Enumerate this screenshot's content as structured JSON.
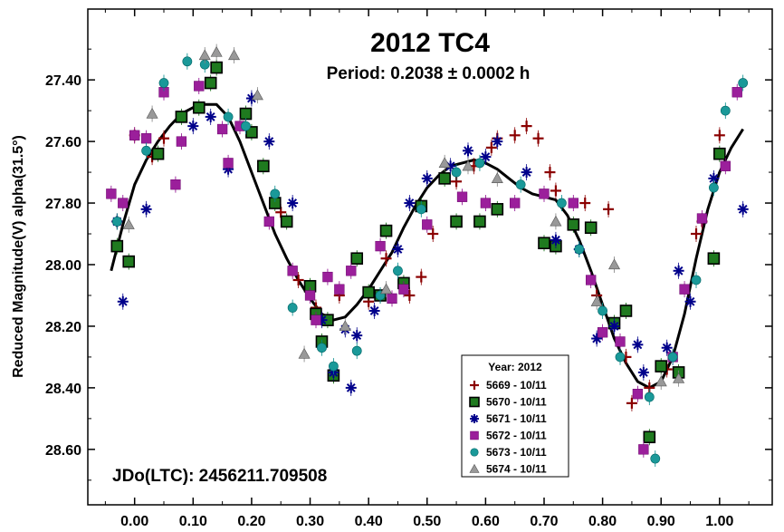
{
  "chart_data": {
    "type": "scatter",
    "title": "2012 TC4",
    "subtitle": "Period: 0.2038 ± 0.0002 h",
    "annotation": "JDo(LTC): 2456211.709508",
    "ylabel": "Reduced Magnitude(V) alpha(31.5°)",
    "xlabel": "",
    "xlim": [
      -0.08,
      1.09
    ],
    "ylim": [
      28.78,
      27.17
    ],
    "y_inverted": true,
    "grid": false,
    "x_ticks": [
      0.0,
      0.1,
      0.2,
      0.3,
      0.4,
      0.5,
      0.6,
      0.7,
      0.8,
      0.9,
      1.0
    ],
    "x_tick_labels": [
      "0.00",
      "0.10",
      "0.20",
      "0.30",
      "0.40",
      "0.50",
      "0.60",
      "0.70",
      "0.80",
      "0.90",
      "1.00"
    ],
    "y_ticks": [
      27.4,
      27.6,
      27.8,
      28.0,
      28.2,
      28.4,
      28.6
    ],
    "y_tick_labels": [
      "27.40",
      "27.60",
      "27.80",
      "28.00",
      "28.20",
      "28.40",
      "28.60"
    ],
    "legend": {
      "title": "Year: 2012",
      "placement": "bottom-center"
    },
    "series": [
      {
        "name": "5669 - 10/11",
        "marker": "plus",
        "color": "#8b0000",
        "points": [
          [
            -0.03,
            27.86
          ],
          [
            0.0,
            27.58
          ],
          [
            0.03,
            27.65
          ],
          [
            0.05,
            27.59
          ],
          [
            0.25,
            27.83
          ],
          [
            0.28,
            28.05
          ],
          [
            0.31,
            28.14
          ],
          [
            0.35,
            28.1
          ],
          [
            0.4,
            28.12
          ],
          [
            0.43,
            27.98
          ],
          [
            0.47,
            28.1
          ],
          [
            0.49,
            28.04
          ],
          [
            0.51,
            27.9
          ],
          [
            0.55,
            27.73
          ],
          [
            0.58,
            27.68
          ],
          [
            0.61,
            27.62
          ],
          [
            0.62,
            27.59
          ],
          [
            0.65,
            27.58
          ],
          [
            0.67,
            27.55
          ],
          [
            0.69,
            27.59
          ],
          [
            0.71,
            27.7
          ],
          [
            0.72,
            27.76
          ],
          [
            0.77,
            27.8
          ],
          [
            0.79,
            28.1
          ],
          [
            0.81,
            27.82
          ],
          [
            0.84,
            28.3
          ],
          [
            0.85,
            28.45
          ],
          [
            0.88,
            28.4
          ],
          [
            0.91,
            28.34
          ],
          [
            0.96,
            27.9
          ],
          [
            0.97,
            27.86
          ],
          [
            1.0,
            27.58
          ]
        ]
      },
      {
        "name": "5670 - 10/11",
        "marker": "square",
        "color": "#006400",
        "points": [
          [
            -0.03,
            27.94
          ],
          [
            -0.01,
            27.99
          ],
          [
            0.04,
            27.64
          ],
          [
            0.08,
            27.52
          ],
          [
            0.11,
            27.49
          ],
          [
            0.13,
            27.41
          ],
          [
            0.14,
            27.36
          ],
          [
            0.19,
            27.51
          ],
          [
            0.2,
            27.57
          ],
          [
            0.22,
            27.68
          ],
          [
            0.24,
            27.8
          ],
          [
            0.26,
            27.86
          ],
          [
            0.3,
            28.07
          ],
          [
            0.31,
            28.16
          ],
          [
            0.32,
            28.25
          ],
          [
            0.33,
            28.18
          ],
          [
            0.34,
            28.36
          ],
          [
            0.38,
            27.98
          ],
          [
            0.4,
            28.09
          ],
          [
            0.42,
            28.1
          ],
          [
            0.43,
            27.89
          ],
          [
            0.46,
            28.06
          ],
          [
            0.49,
            27.81
          ],
          [
            0.53,
            27.72
          ],
          [
            0.55,
            27.86
          ],
          [
            0.59,
            27.86
          ],
          [
            0.62,
            27.82
          ],
          [
            0.7,
            27.93
          ],
          [
            0.72,
            27.94
          ],
          [
            0.75,
            27.87
          ],
          [
            0.78,
            27.88
          ],
          [
            0.82,
            28.19
          ],
          [
            0.84,
            28.15
          ],
          [
            0.88,
            28.56
          ],
          [
            0.9,
            28.33
          ],
          [
            0.93,
            28.35
          ],
          [
            0.99,
            27.98
          ],
          [
            1.0,
            27.64
          ]
        ]
      },
      {
        "name": "5671 - 10/11",
        "marker": "asterisk",
        "color": "#00008b",
        "points": [
          [
            -0.03,
            27.86
          ],
          [
            -0.02,
            28.12
          ],
          [
            0.02,
            27.82
          ],
          [
            0.1,
            27.55
          ],
          [
            0.13,
            27.52
          ],
          [
            0.16,
            27.69
          ],
          [
            0.2,
            27.46
          ],
          [
            0.23,
            27.6
          ],
          [
            0.27,
            27.8
          ],
          [
            0.32,
            28.18
          ],
          [
            0.34,
            28.35
          ],
          [
            0.36,
            28.21
          ],
          [
            0.37,
            28.4
          ],
          [
            0.38,
            28.23
          ],
          [
            0.41,
            28.15
          ],
          [
            0.45,
            27.95
          ],
          [
            0.47,
            27.8
          ],
          [
            0.5,
            27.72
          ],
          [
            0.54,
            27.68
          ],
          [
            0.57,
            27.63
          ],
          [
            0.6,
            27.65
          ],
          [
            0.62,
            27.6
          ],
          [
            0.67,
            27.7
          ],
          [
            0.72,
            27.92
          ],
          [
            0.76,
            27.95
          ],
          [
            0.79,
            28.24
          ],
          [
            0.82,
            28.2
          ],
          [
            0.86,
            28.26
          ],
          [
            0.87,
            28.35
          ],
          [
            0.91,
            28.27
          ],
          [
            0.93,
            28.02
          ],
          [
            0.95,
            28.12
          ],
          [
            0.99,
            27.72
          ],
          [
            1.04,
            27.82
          ]
        ]
      },
      {
        "name": "5672 - 10/11",
        "marker": "square-filled",
        "color": "#8b008b",
        "points": [
          [
            -0.04,
            27.77
          ],
          [
            -0.02,
            27.8
          ],
          [
            0.0,
            27.58
          ],
          [
            0.02,
            27.59
          ],
          [
            0.05,
            27.44
          ],
          [
            0.07,
            27.74
          ],
          [
            0.08,
            27.6
          ],
          [
            0.11,
            27.42
          ],
          [
            0.15,
            27.56
          ],
          [
            0.16,
            27.67
          ],
          [
            0.18,
            27.55
          ],
          [
            0.23,
            27.86
          ],
          [
            0.27,
            28.02
          ],
          [
            0.3,
            28.1
          ],
          [
            0.31,
            28.18
          ],
          [
            0.33,
            28.04
          ],
          [
            0.35,
            28.08
          ],
          [
            0.37,
            28.02
          ],
          [
            0.42,
            27.94
          ],
          [
            0.44,
            28.11
          ],
          [
            0.46,
            28.08
          ],
          [
            0.5,
            27.87
          ],
          [
            0.56,
            27.78
          ],
          [
            0.6,
            27.8
          ],
          [
            0.65,
            27.8
          ],
          [
            0.7,
            27.77
          ],
          [
            0.75,
            27.8
          ],
          [
            0.78,
            28.05
          ],
          [
            0.8,
            28.22
          ],
          [
            0.83,
            28.25
          ],
          [
            0.86,
            28.42
          ],
          [
            0.87,
            28.6
          ],
          [
            0.92,
            28.3
          ],
          [
            0.94,
            28.08
          ],
          [
            0.97,
            27.85
          ],
          [
            1.01,
            27.68
          ],
          [
            1.03,
            27.44
          ]
        ]
      },
      {
        "name": "5673 - 10/11",
        "marker": "circle",
        "color": "#008b8b",
        "points": [
          [
            -0.03,
            27.86
          ],
          [
            0.02,
            27.63
          ],
          [
            0.05,
            27.41
          ],
          [
            0.09,
            27.34
          ],
          [
            0.12,
            27.35
          ],
          [
            0.16,
            27.52
          ],
          [
            0.19,
            27.55
          ],
          [
            0.24,
            27.77
          ],
          [
            0.27,
            28.14
          ],
          [
            0.32,
            28.27
          ],
          [
            0.34,
            28.33
          ],
          [
            0.38,
            28.28
          ],
          [
            0.42,
            28.1
          ],
          [
            0.45,
            28.02
          ],
          [
            0.49,
            27.82
          ],
          [
            0.55,
            27.7
          ],
          [
            0.59,
            27.67
          ],
          [
            0.66,
            27.74
          ],
          [
            0.73,
            27.8
          ],
          [
            0.76,
            27.95
          ],
          [
            0.8,
            28.15
          ],
          [
            0.83,
            28.3
          ],
          [
            0.88,
            28.43
          ],
          [
            0.89,
            28.63
          ],
          [
            0.92,
            28.3
          ],
          [
            0.96,
            28.05
          ],
          [
            0.99,
            27.75
          ],
          [
            1.01,
            27.5
          ],
          [
            1.04,
            27.41
          ]
        ]
      },
      {
        "name": "5674 - 10/11",
        "marker": "triangle",
        "color": "#808080",
        "points": [
          [
            -0.01,
            27.87
          ],
          [
            0.03,
            27.51
          ],
          [
            0.12,
            27.32
          ],
          [
            0.14,
            27.31
          ],
          [
            0.17,
            27.32
          ],
          [
            0.21,
            27.45
          ],
          [
            0.29,
            28.29
          ],
          [
            0.36,
            28.2
          ],
          [
            0.43,
            28.08
          ],
          [
            0.53,
            27.67
          ],
          [
            0.57,
            27.68
          ],
          [
            0.62,
            27.72
          ],
          [
            0.72,
            27.86
          ],
          [
            0.79,
            28.12
          ],
          [
            0.82,
            28.0
          ],
          [
            0.9,
            28.38
          ],
          [
            0.93,
            28.37
          ]
        ]
      }
    ],
    "fit_curve": {
      "color": "#000000",
      "points": [
        [
          -0.04,
          28.02
        ],
        [
          -0.02,
          27.87
        ],
        [
          0.0,
          27.74
        ],
        [
          0.02,
          27.66
        ],
        [
          0.04,
          27.6
        ],
        [
          0.06,
          27.55
        ],
        [
          0.08,
          27.51
        ],
        [
          0.1,
          27.49
        ],
        [
          0.12,
          27.48
        ],
        [
          0.14,
          27.48
        ],
        [
          0.16,
          27.52
        ],
        [
          0.18,
          27.6
        ],
        [
          0.2,
          27.7
        ],
        [
          0.22,
          27.8
        ],
        [
          0.24,
          27.9
        ],
        [
          0.26,
          27.98
        ],
        [
          0.28,
          28.05
        ],
        [
          0.3,
          28.11
        ],
        [
          0.32,
          28.16
        ],
        [
          0.34,
          28.18
        ],
        [
          0.36,
          28.17
        ],
        [
          0.38,
          28.13
        ],
        [
          0.4,
          28.08
        ],
        [
          0.42,
          28.02
        ],
        [
          0.44,
          27.96
        ],
        [
          0.46,
          27.88
        ],
        [
          0.48,
          27.81
        ],
        [
          0.5,
          27.75
        ],
        [
          0.52,
          27.71
        ],
        [
          0.54,
          27.68
        ],
        [
          0.56,
          27.67
        ],
        [
          0.58,
          27.66
        ],
        [
          0.6,
          27.67
        ],
        [
          0.62,
          27.69
        ],
        [
          0.64,
          27.72
        ],
        [
          0.66,
          27.75
        ],
        [
          0.68,
          27.77
        ],
        [
          0.7,
          27.78
        ],
        [
          0.72,
          27.79
        ],
        [
          0.74,
          27.84
        ],
        [
          0.76,
          27.92
        ],
        [
          0.78,
          28.02
        ],
        [
          0.8,
          28.13
        ],
        [
          0.82,
          28.24
        ],
        [
          0.84,
          28.32
        ],
        [
          0.86,
          28.38
        ],
        [
          0.88,
          28.4
        ],
        [
          0.9,
          28.38
        ],
        [
          0.92,
          28.3
        ],
        [
          0.94,
          28.16
        ],
        [
          0.96,
          27.98
        ],
        [
          0.98,
          27.82
        ],
        [
          1.0,
          27.7
        ],
        [
          1.02,
          27.62
        ],
        [
          1.04,
          27.56
        ]
      ]
    }
  }
}
